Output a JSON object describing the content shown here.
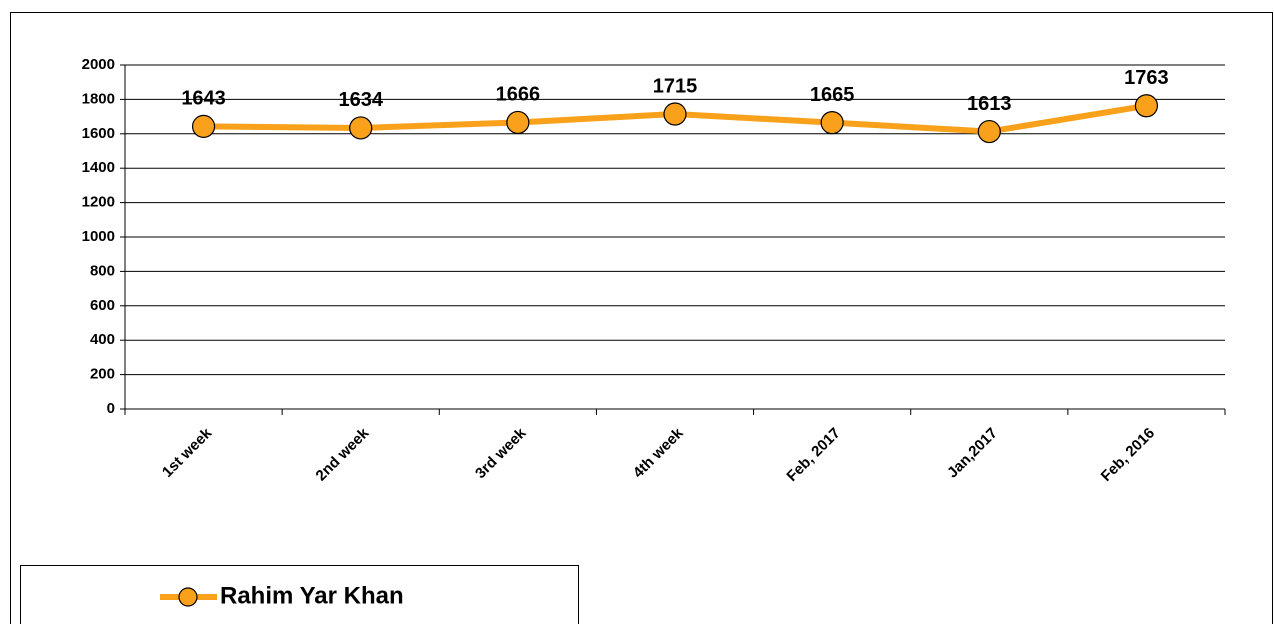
{
  "chart_data": {
    "type": "line",
    "categories": [
      "1st week",
      "2nd week",
      "3rd week",
      "4th week",
      "Feb, 2017",
      "Jan,2017",
      "Feb, 2016"
    ],
    "series": [
      {
        "name": "Rahim Yar Khan",
        "color": "#f9a11b",
        "values": [
          1643,
          1634,
          1666,
          1715,
          1665,
          1613,
          1763
        ]
      }
    ],
    "ylim": [
      0,
      2000
    ],
    "yticks": [
      0,
      200,
      400,
      600,
      800,
      1000,
      1200,
      1400,
      1600,
      1800,
      2000
    ],
    "grid": true,
    "legend": "bottom-left"
  }
}
